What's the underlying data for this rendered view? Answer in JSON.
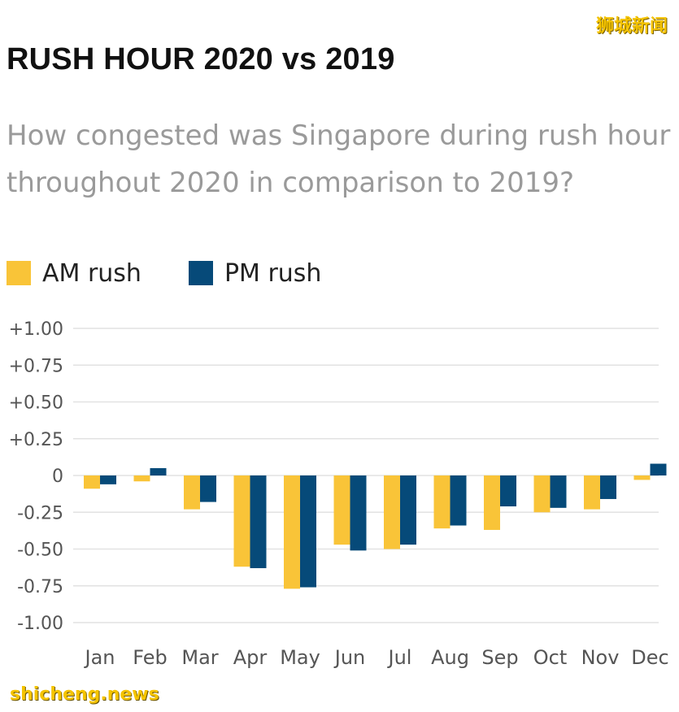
{
  "watermark_top": "狮城新闻",
  "watermark_bottom": "shicheng.news",
  "colors": {
    "am": "#f9c438",
    "pm": "#064a79",
    "grid": "#e2e2e2",
    "tick": "#555555"
  },
  "chart_data": {
    "type": "bar",
    "title": "RUSH HOUR 2020 vs 2019",
    "subtitle": "How congested was Singapore during rush hour throughout 2020 in comparison to 2019?",
    "xlabel": "",
    "ylabel": "",
    "ylim": [
      -1.0,
      1.0
    ],
    "yticks": [
      {
        "value": 1.0,
        "label": "+1.00"
      },
      {
        "value": 0.75,
        "label": "+0.75"
      },
      {
        "value": 0.5,
        "label": "+0.50"
      },
      {
        "value": 0.25,
        "label": "+0.25"
      },
      {
        "value": 0,
        "label": "0"
      },
      {
        "value": -0.25,
        "label": "-0.25"
      },
      {
        "value": -0.5,
        "label": "-0.50"
      },
      {
        "value": -0.75,
        "label": "-0.75"
      },
      {
        "value": -1.0,
        "label": "-1.00"
      }
    ],
    "categories": [
      "Jan",
      "Feb",
      "Mar",
      "Apr",
      "May",
      "Jun",
      "Jul",
      "Aug",
      "Sep",
      "Oct",
      "Nov",
      "Dec"
    ],
    "series": [
      {
        "name": "AM rush",
        "values": [
          -0.09,
          -0.04,
          -0.23,
          -0.62,
          -0.77,
          -0.47,
          -0.5,
          -0.36,
          -0.37,
          -0.25,
          -0.23,
          -0.03
        ]
      },
      {
        "name": "PM rush",
        "values": [
          -0.06,
          0.05,
          -0.18,
          -0.63,
          -0.76,
          -0.51,
          -0.47,
          -0.34,
          -0.21,
          -0.22,
          -0.16,
          0.08
        ]
      }
    ],
    "legend_position": "top-left",
    "grid": true
  }
}
